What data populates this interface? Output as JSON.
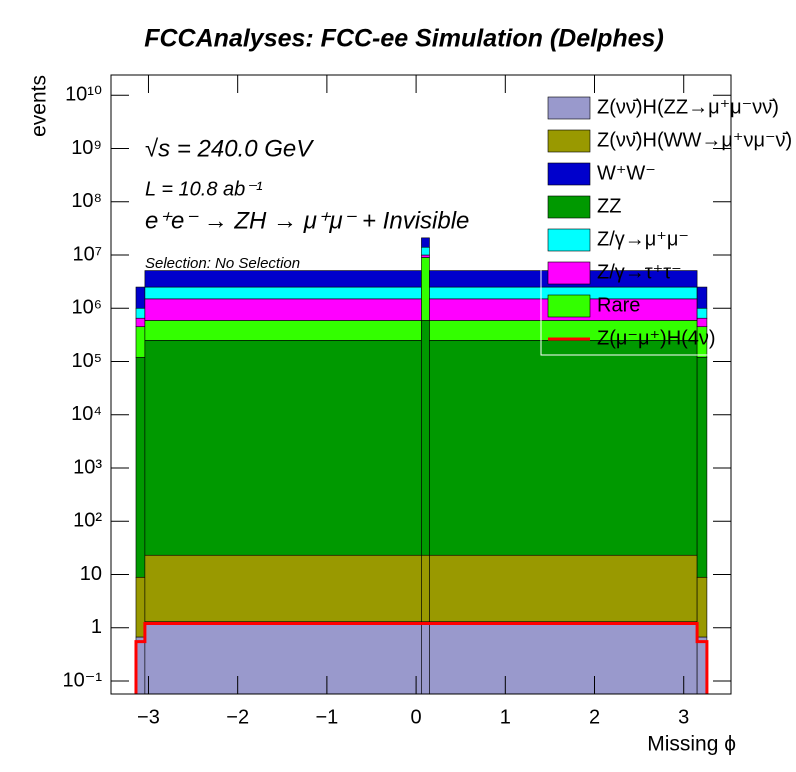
{
  "chart_data": {
    "type": "stacked_histogram",
    "title": "FCCAnalyses: FCC-ee Simulation (Delphes)",
    "x_label": "Missing ϕ",
    "y_label": "events",
    "annotations": [
      "√s = 240.0 GeV",
      "L = 10.8 ab⁻¹",
      "e⁺e⁻ → ZH → μ⁺μ⁻ + Invisible",
      "Selection: No Selection"
    ],
    "bins": [
      -3.14,
      -3.04,
      0.06,
      0.15,
      3.15,
      3.26
    ],
    "series": [
      {
        "name": "Z(νν̄)H(ZZ→μ⁺μ⁻νν̄)",
        "color": "#9999cc",
        "values": [
          0.67,
          1.3,
          1.3,
          1.3,
          0.67
        ]
      },
      {
        "name": "Z(νν̄)H(WW→μ⁺νμ⁻ν̄)",
        "color": "#999900",
        "values": [
          8.2,
          21.7,
          21.7,
          21.7,
          8.2
        ]
      },
      {
        "name": "W⁺W⁻",
        "color": "#0000cc",
        "values": [
          1500000,
          2600000,
          7000000,
          2600000,
          1500000
        ]
      },
      {
        "name": "ZZ",
        "color": "#009900",
        "values": [
          120000,
          250000,
          590000,
          250000,
          120000
        ]
      },
      {
        "name": "Z/γ→μ⁺μ⁻",
        "color": "#00ffff",
        "values": [
          350000,
          1000000,
          4000000,
          1000000,
          350000
        ]
      },
      {
        "name": "Z/γ→τ⁺τ⁻",
        "color": "#ff00ff",
        "values": [
          200000,
          910000,
          1000000,
          910000,
          200000
        ]
      },
      {
        "name": "Rare",
        "color": "#33ff00",
        "values": [
          330000,
          340000,
          8400000,
          340000,
          330000
        ]
      },
      {
        "name": "Z(μ⁻μ⁺)H(4ν)",
        "color": "#ff0000",
        "histtype": "step",
        "values": [
          0.55,
          1.2,
          1.2,
          1.2,
          0.55
        ]
      }
    ],
    "xlim": [
      -3.42,
      3.53
    ],
    "ylim": [
      0.057,
      24000000000
    ],
    "log_y": true,
    "xticks": [
      {
        "value": -3,
        "label": "−3"
      },
      {
        "value": -2,
        "label": "−2"
      },
      {
        "value": -1,
        "label": "−1"
      },
      0,
      1,
      2,
      3
    ],
    "yticks": [
      {
        "value": 0.1,
        "label": "10⁻¹"
      },
      1,
      10,
      {
        "value": 100,
        "label": "10²"
      },
      {
        "value": 1000,
        "label": "10³"
      },
      {
        "value": 10000,
        "label": "10⁴"
      },
      {
        "value": 100000,
        "label": "10⁵"
      },
      {
        "value": 1000000,
        "label": "10⁶"
      },
      {
        "value": 10000000,
        "label": "10⁷"
      },
      {
        "value": 100000000,
        "label": "10⁸"
      },
      {
        "value": 1000000000,
        "label": "10⁹"
      },
      {
        "value": 10000000000,
        "label": "10¹⁰"
      }
    ]
  }
}
